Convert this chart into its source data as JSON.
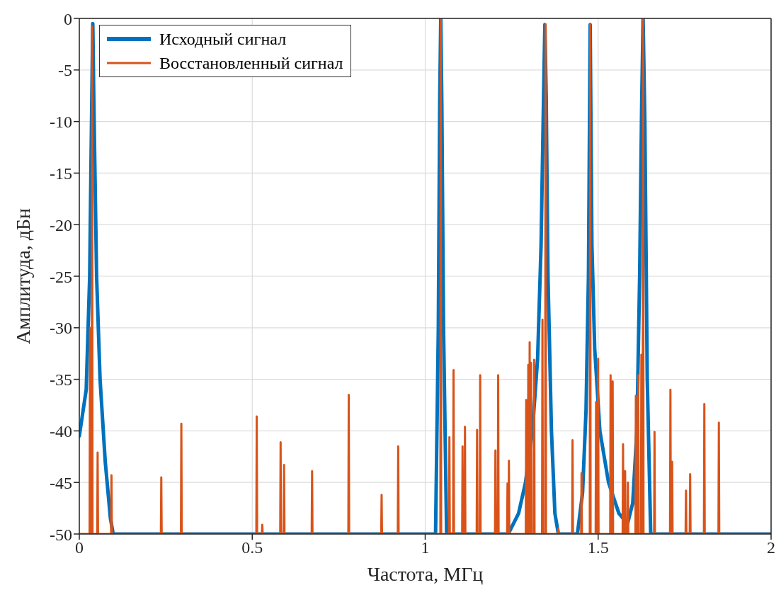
{
  "chart_data": {
    "type": "line",
    "xlabel": "Частота, МГц",
    "ylabel": "Амплитуда, дБн",
    "xlim": [
      0,
      2
    ],
    "ylim": [
      -50,
      0
    ],
    "xticks": [
      0,
      0.5,
      1,
      1.5,
      2
    ],
    "yticks": [
      -50,
      -45,
      -40,
      -35,
      -30,
      -25,
      -20,
      -15,
      -10,
      -5,
      0
    ],
    "grid": true,
    "legend": "top left",
    "marker": "none",
    "line_style": "solid",
    "series": [
      {
        "name": "Исходный сигнал",
        "color": "#0072bd",
        "x": [
          0,
          0.02,
          0.03,
          0.036,
          0.039,
          0.042,
          0.05,
          0.06,
          0.075,
          0.09,
          0.098,
          1.03,
          1.038,
          1.042,
          1.045,
          1.048,
          1.053,
          1.062,
          1.24,
          1.27,
          1.29,
          1.31,
          1.325,
          1.335,
          1.342,
          1.346,
          1.35,
          1.355,
          1.365,
          1.375,
          1.385,
          1.44,
          1.455,
          1.465,
          1.472,
          1.477,
          1.482,
          1.49,
          1.505,
          1.53,
          1.56,
          1.585,
          1.6,
          1.612,
          1.62,
          1.626,
          1.63,
          1.635,
          1.642,
          1.652,
          2
        ],
        "values": [
          -40.5,
          -36,
          -25,
          -8,
          -0.5,
          -8,
          -25,
          -35,
          -43,
          -48.5,
          -50,
          -50,
          -30,
          -8,
          0,
          -8,
          -30,
          -50,
          -50,
          -48,
          -45,
          -40,
          -33,
          -22,
          -8,
          -0.6,
          -8,
          -25,
          -40,
          -48,
          -50,
          -50,
          -46,
          -38,
          -25,
          -0.6,
          -22,
          -32,
          -40,
          -45,
          -48,
          -49,
          -47,
          -40,
          -25,
          -8,
          0,
          -10,
          -35,
          -50,
          -50
        ]
      },
      {
        "name": "Восстановленный сигнал",
        "color": "#d95319",
        "x": [
          0,
          0.0298,
          0.031,
          0.0322,
          0.0358,
          0.037,
          0.0382,
          0.0518,
          0.053,
          0.0542,
          0.0918,
          0.093,
          0.0942,
          0.2358,
          0.237,
          0.2382,
          0.2938,
          0.295,
          0.2962,
          0.5118,
          0.513,
          0.5142,
          0.5278,
          0.529,
          0.5302,
          0.5808,
          0.582,
          0.5832,
          0.5908,
          0.592,
          0.5932,
          0.6718,
          0.673,
          0.6742,
          0.7778,
          0.779,
          0.7802,
          0.8728,
          0.874,
          0.8752,
          0.9208,
          0.922,
          0.9232,
          1.0438,
          1.045,
          1.0462,
          1.0688,
          1.07,
          1.0712,
          1.0808,
          1.082,
          1.0832,
          1.1068,
          1.108,
          1.1092,
          1.1138,
          1.115,
          1.1162,
          1.1488,
          1.15,
          1.1512,
          1.1578,
          1.159,
          1.1602,
          1.2018,
          1.203,
          1.2042,
          1.2098,
          1.211,
          1.2122,
          1.2368,
          1.238,
          1.2392,
          1.2408,
          1.242,
          1.2432,
          1.2908,
          1.292,
          1.2932,
          1.2968,
          1.298,
          1.2992,
          1.3008,
          1.302,
          1.3032,
          1.3048,
          1.306,
          1.3072,
          1.3138,
          1.315,
          1.3162,
          1.3378,
          1.339,
          1.3402,
          1.3468,
          1.348,
          1.3492,
          1.3838,
          1.385,
          1.3862,
          1.4248,
          1.426,
          1.4272,
          1.4508,
          1.452,
          1.4532,
          1.4758,
          1.477,
          1.4782,
          1.4928,
          1.494,
          1.4952,
          1.4988,
          1.5,
          1.5012,
          1.5348,
          1.536,
          1.5372,
          1.5408,
          1.542,
          1.5432,
          1.5708,
          1.572,
          1.5732,
          1.5768,
          1.578,
          1.5792,
          1.5848,
          1.586,
          1.5872,
          1.6078,
          1.609,
          1.6102,
          1.6148,
          1.616,
          1.6172,
          1.6238,
          1.625,
          1.6262,
          1.6288,
          1.63,
          1.6312,
          1.6618,
          1.663,
          1.6642,
          1.7078,
          1.709,
          1.7102,
          1.7128,
          1.714,
          1.7152,
          1.7528,
          1.754,
          1.7552,
          1.7648,
          1.766,
          1.7672,
          1.8058,
          1.807,
          1.8082,
          1.8478,
          1.849,
          1.8502,
          2
        ],
        "values": [
          -50,
          -50,
          -30,
          -50,
          -50,
          -0.8,
          -50,
          -50,
          -42.1,
          -50,
          -50,
          -44.3,
          -50,
          -50,
          -44.5,
          -50,
          -50,
          -39.3,
          -50,
          -50,
          -38.6,
          -50,
          -50,
          -49.1,
          -50,
          -50,
          -41.1,
          -50,
          -50,
          -43.3,
          -50,
          -50,
          -43.9,
          -50,
          -50,
          -36.5,
          -50,
          -50,
          -46.2,
          -50,
          -50,
          -41.5,
          -50,
          -50,
          0,
          -50,
          -50,
          -40.6,
          -50,
          -50,
          -34.1,
          -50,
          -50,
          -41.5,
          -50,
          -50,
          -39.6,
          -50,
          -50,
          -39.9,
          -50,
          -50,
          -34.6,
          -50,
          -50,
          -41.9,
          -50,
          -50,
          -34.6,
          -50,
          -50,
          -45.1,
          -50,
          -50,
          -42.9,
          -50,
          -50,
          -37,
          -50,
          -50,
          -33.6,
          -50,
          -50,
          -31.4,
          -50,
          -50,
          -33.4,
          -50,
          -50,
          -33.1,
          -50,
          -50,
          -29.2,
          -50,
          -50,
          -0.6,
          -50,
          -50,
          -49.5,
          -50,
          -50,
          -40.9,
          -50,
          -50,
          -44.1,
          -50,
          -50,
          -0.6,
          -50,
          -50,
          -37.2,
          -50,
          -50,
          -33,
          -50,
          -50,
          -34.6,
          -50,
          -50,
          -35.2,
          -50,
          -50,
          -41.3,
          -50,
          -50,
          -43.9,
          -50,
          -50,
          -45,
          -50,
          -50,
          -36.6,
          -50,
          -50,
          -34.6,
          -50,
          -50,
          -32.6,
          -50,
          -50,
          0,
          -50,
          -50,
          -40.1,
          -50,
          -50,
          -36,
          -50,
          -50,
          -43,
          -50,
          -50,
          -45.8,
          -50,
          -50,
          -44.2,
          -50,
          -50,
          -37.4,
          -50,
          -50,
          -39.2,
          -50,
          -50
        ]
      }
    ]
  }
}
